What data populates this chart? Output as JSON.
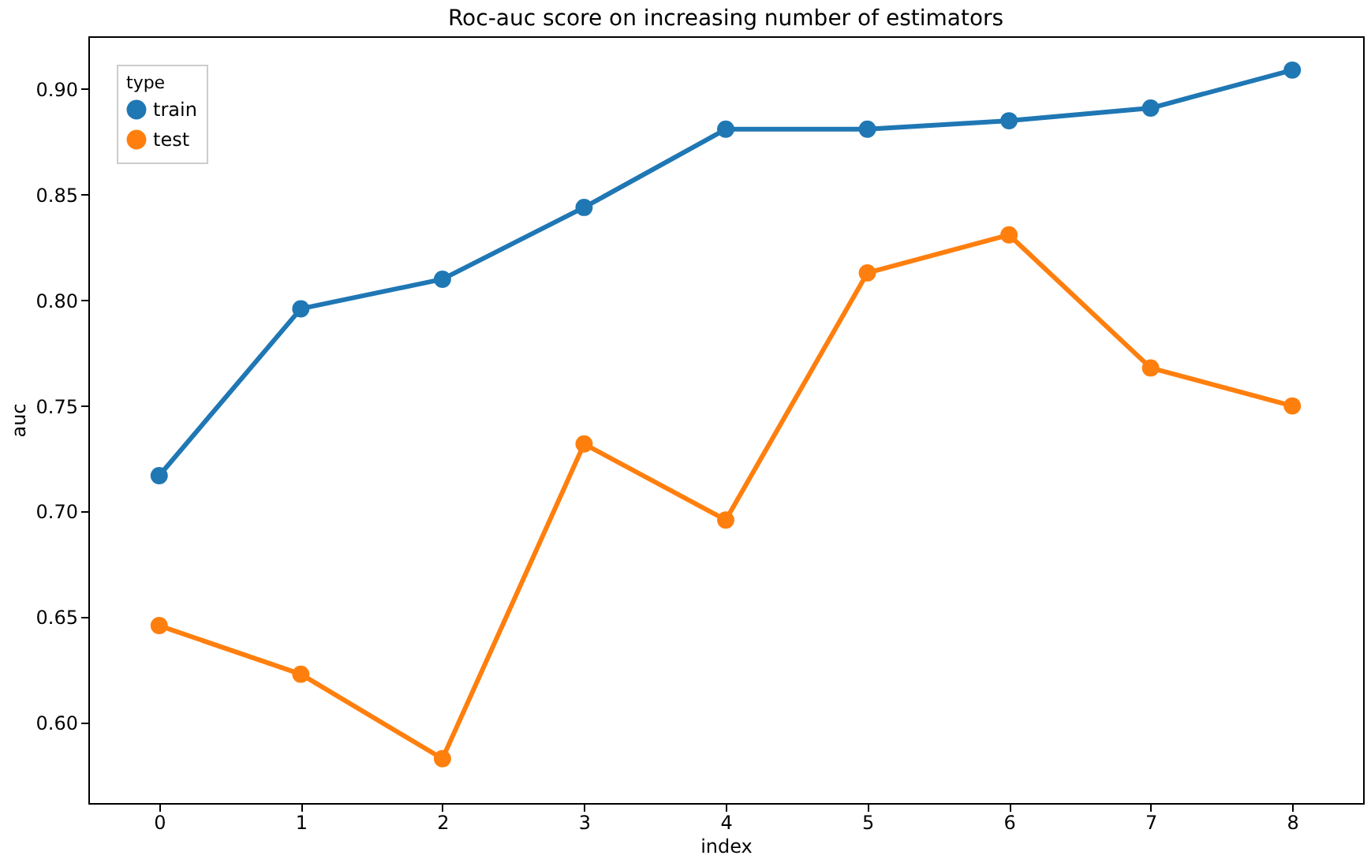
{
  "chart_data": {
    "type": "line",
    "title": "Roc-auc score on increasing number of estimators",
    "xlabel": "index",
    "ylabel": "auc",
    "legend_title": "type",
    "legend": "top left",
    "marker": "circle",
    "line_style": "solid",
    "grid": false,
    "categories": [
      "0",
      "1",
      "2",
      "3",
      "4",
      "5",
      "6",
      "7",
      "8"
    ],
    "ylim": [
      0.562,
      0.925
    ],
    "yticks": [
      {
        "value": 0.6,
        "label": "0.60"
      },
      0.65,
      {
        "value": 0.7,
        "label": "0.70"
      },
      0.75,
      {
        "value": 0.8,
        "label": "0.80"
      },
      0.85,
      {
        "value": 0.9,
        "label": "0.90"
      }
    ],
    "series": [
      {
        "name": "train",
        "color": "#1f77b4",
        "values": [
          0.717,
          0.796,
          0.81,
          0.844,
          0.881,
          0.881,
          0.885,
          0.891,
          0.909
        ]
      },
      {
        "name": "test",
        "color": "#ff7f0e",
        "values": [
          0.646,
          0.623,
          0.583,
          0.732,
          0.696,
          0.813,
          0.831,
          0.768,
          0.75
        ]
      }
    ]
  }
}
